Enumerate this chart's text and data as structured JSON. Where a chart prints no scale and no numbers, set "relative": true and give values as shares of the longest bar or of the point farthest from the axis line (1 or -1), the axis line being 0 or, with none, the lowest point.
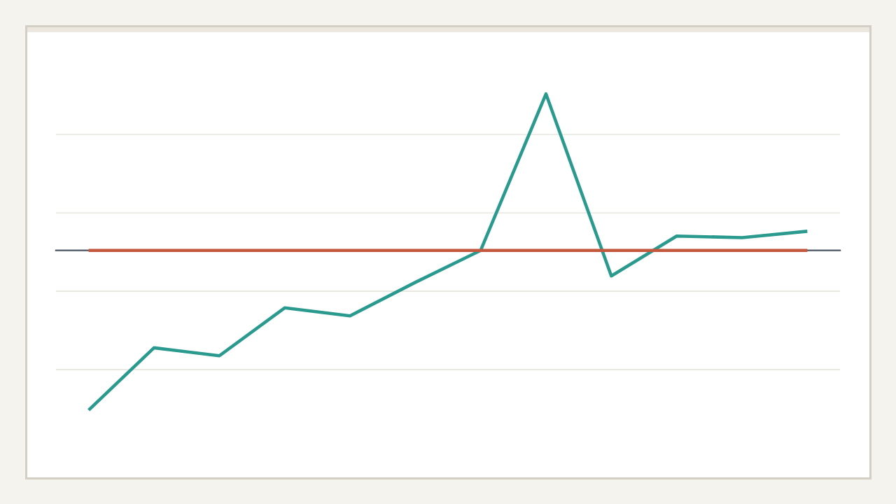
{
  "chart_data": {
    "type": "line",
    "relative": true,
    "categories": [
      null,
      null,
      null,
      null,
      null,
      null,
      null,
      null,
      null,
      null,
      null,
      null
    ],
    "series": [
      {
        "color": "#2a9a8f",
        "values": [
          -1,
          -0.61,
          -0.66,
          -0.36,
          -0.41,
          -0.2,
          0,
          0.98,
          -0.16,
          0.09,
          0.08,
          0.12
        ]
      },
      {
        "color": "#c3583f",
        "values": [
          0,
          0,
          0,
          0,
          0,
          0,
          0,
          0,
          0,
          0,
          0,
          0
        ]
      }
    ],
    "grid": "y"
  }
}
